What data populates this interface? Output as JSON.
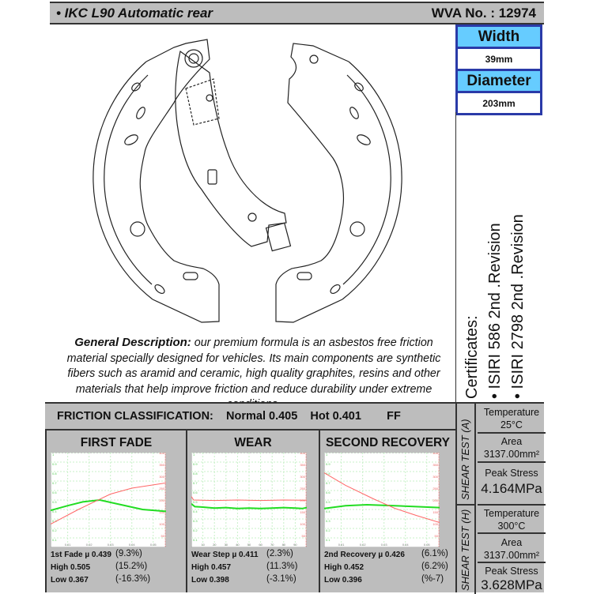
{
  "header": {
    "title": "• IKC  L90 Automatic    rear",
    "wva": "WVA No. : 12974"
  },
  "specs": {
    "width_label": "Width",
    "width_value": "39mm",
    "diameter_label": "Diameter",
    "diameter_value": "203mm"
  },
  "certificates": {
    "title": "Certificates:",
    "items": [
      "• ISIRI 586 2nd .Revision",
      "• ISIRI 2798 2nd .Revision"
    ]
  },
  "description": {
    "label": "General Description:",
    "text": " our premium formula is an asbestos free friction material specially designed for vehicles. Its main components are synthetic fibers such as aramid and ceramic, high quality graphites, resins and other materials that help improve friction and reduce durability under extreme conditions."
  },
  "friction": {
    "label": "FRICTION CLASSIFICATION:",
    "normal": "Normal 0.405",
    "hot": "Hot 0.401",
    "code": "FF"
  },
  "colors": {
    "friction_line": "#22dd22",
    "temperature_line": "#ff6666",
    "grid": "#c8f0c8",
    "panel_bg": "#bdbdbd",
    "spec_label_bg": "#66ccff",
    "spec_border": "#2a3aa8"
  },
  "panels": [
    {
      "title": "FIRST FADE",
      "stats": [
        {
          "label": "1st Fade µ 0.439",
          "pct": "(9.3%)"
        },
        {
          "label": "High 0.505",
          "pct": "(15.2%)"
        },
        {
          "label": "Low 0.367",
          "pct": "(-16.3%)"
        }
      ]
    },
    {
      "title": "WEAR",
      "stats": [
        {
          "label": "Wear Step µ 0.411",
          "pct": "(2.3%)"
        },
        {
          "label": "High 0.457",
          "pct": "(11.3%)"
        },
        {
          "label": "Low 0.398",
          "pct": "(-3.1%)"
        }
      ]
    },
    {
      "title": "SECOND RECOVERY",
      "stats": [
        {
          "label": "2nd Recovery µ 0.426",
          "pct": "(6.1%)"
        },
        {
          "label": "High 0.452",
          "pct": "(6.2%)"
        },
        {
          "label": "Low 0.396",
          "pct": "(%-7)"
        }
      ]
    }
  ],
  "chart_data": [
    {
      "type": "line",
      "title": "FIRST FADE",
      "xlim": [
        0.002,
        0.056
      ],
      "ylim": [
        0,
        1
      ],
      "y2lim": [
        0,
        400
      ],
      "grid": true,
      "xticks": [
        "0.01",
        "0.02",
        "0.03",
        "0.04",
        "0.05"
      ],
      "xtick_values": [
        0.01,
        0.02,
        0.03,
        0.04,
        0.05
      ],
      "yticks": [
        "1",
        "0.9",
        "0.8",
        "0.7",
        "0.6",
        "0.5",
        "0.4",
        "0.3",
        "0.2",
        "0.1"
      ],
      "y2ticks": [
        "400",
        "350",
        "300",
        "250",
        "200",
        "150",
        "100",
        "50"
      ],
      "series": [
        {
          "axis": "left",
          "color": "#22dd22",
          "points": [
            [
              0.002,
              0.39
            ],
            [
              0.01,
              0.44
            ],
            [
              0.017,
              0.48
            ],
            [
              0.025,
              0.5
            ],
            [
              0.035,
              0.45
            ],
            [
              0.045,
              0.4
            ],
            [
              0.056,
              0.38
            ]
          ]
        },
        {
          "axis": "right",
          "color": "#ff6666",
          "points": [
            [
              0.002,
              98
            ],
            [
              0.015,
              160
            ],
            [
              0.03,
              225
            ],
            [
              0.04,
              250
            ],
            [
              0.056,
              272
            ]
          ]
        }
      ]
    },
    {
      "type": "line",
      "title": "WEAR",
      "xlim": [
        0,
        100
      ],
      "ylim": [
        0,
        1
      ],
      "y2lim": [
        0,
        400
      ],
      "grid": true,
      "xticks": [
        "10",
        "20",
        "30",
        "40",
        "50",
        "60",
        "70",
        "80",
        "90"
      ],
      "xtick_values": [
        10,
        20,
        30,
        40,
        50,
        60,
        70,
        80,
        90
      ],
      "yticks": [
        "1",
        "0.9",
        "0.8",
        "0.7",
        "0.6",
        "0.5",
        "0.4",
        "0.3",
        "0.2",
        "0.1"
      ],
      "y2ticks": [
        "400",
        "350",
        "300",
        "250",
        "200",
        "150",
        "100",
        "50"
      ],
      "series": [
        {
          "axis": "left",
          "color": "#22dd22",
          "points": [
            [
              0,
              0.46
            ],
            [
              3,
              0.43
            ],
            [
              10,
              0.425
            ],
            [
              20,
              0.415
            ],
            [
              30,
              0.42
            ],
            [
              40,
              0.41
            ],
            [
              50,
              0.415
            ],
            [
              60,
              0.41
            ],
            [
              70,
              0.415
            ],
            [
              80,
              0.42
            ],
            [
              90,
              0.415
            ],
            [
              96,
              0.41
            ],
            [
              100,
              0.42
            ]
          ]
        },
        {
          "axis": "right",
          "color": "#ff6666",
          "points": [
            [
              0,
              215
            ],
            [
              2,
              200
            ],
            [
              20,
              198
            ],
            [
              40,
              200
            ],
            [
              60,
              198
            ],
            [
              80,
              200
            ],
            [
              100,
              199
            ]
          ]
        }
      ]
    },
    {
      "type": "line",
      "title": "SECOND RECOVERY",
      "xlim": [
        0.002,
        0.056
      ],
      "ylim": [
        0,
        1
      ],
      "y2lim": [
        0,
        400
      ],
      "grid": true,
      "xticks": [
        "0.01",
        "0.02",
        "0.03",
        "0.04",
        "0.05"
      ],
      "xtick_values": [
        0.01,
        0.02,
        0.03,
        0.04,
        0.05
      ],
      "yticks": [
        "1",
        "0.9",
        "0.8",
        "0.7",
        "0.6",
        "0.5",
        "0.4",
        "0.3",
        "0.2",
        "0.1"
      ],
      "y2ticks": [
        "400",
        "350",
        "300",
        "250",
        "200",
        "150",
        "100",
        "50"
      ],
      "series": [
        {
          "axis": "left",
          "color": "#22dd22",
          "points": [
            [
              0.002,
              0.41
            ],
            [
              0.012,
              0.44
            ],
            [
              0.022,
              0.45
            ],
            [
              0.035,
              0.44
            ],
            [
              0.045,
              0.43
            ],
            [
              0.056,
              0.42
            ]
          ]
        },
        {
          "axis": "right",
          "color": "#ff6666",
          "points": [
            [
              0.002,
              315
            ],
            [
              0.012,
              262
            ],
            [
              0.025,
              205
            ],
            [
              0.035,
              165
            ],
            [
              0.045,
              135
            ],
            [
              0.056,
              105
            ]
          ]
        }
      ]
    }
  ],
  "shear_tests": [
    {
      "label": "SHEAR TEST (A)",
      "temperature_label": "Temperature",
      "temperature": "25°C",
      "area_label": "Area",
      "area": "3137.00mm²",
      "peak_label": "Peak Stress",
      "peak": "4.164MPa"
    },
    {
      "label": "SHEAR TEST (H)",
      "temperature_label": "Temperature",
      "temperature": "300°C",
      "area_label": "Area",
      "area": "3137.00mm²",
      "peak_label": "Peak Stress",
      "peak": "3.628MPa"
    }
  ]
}
